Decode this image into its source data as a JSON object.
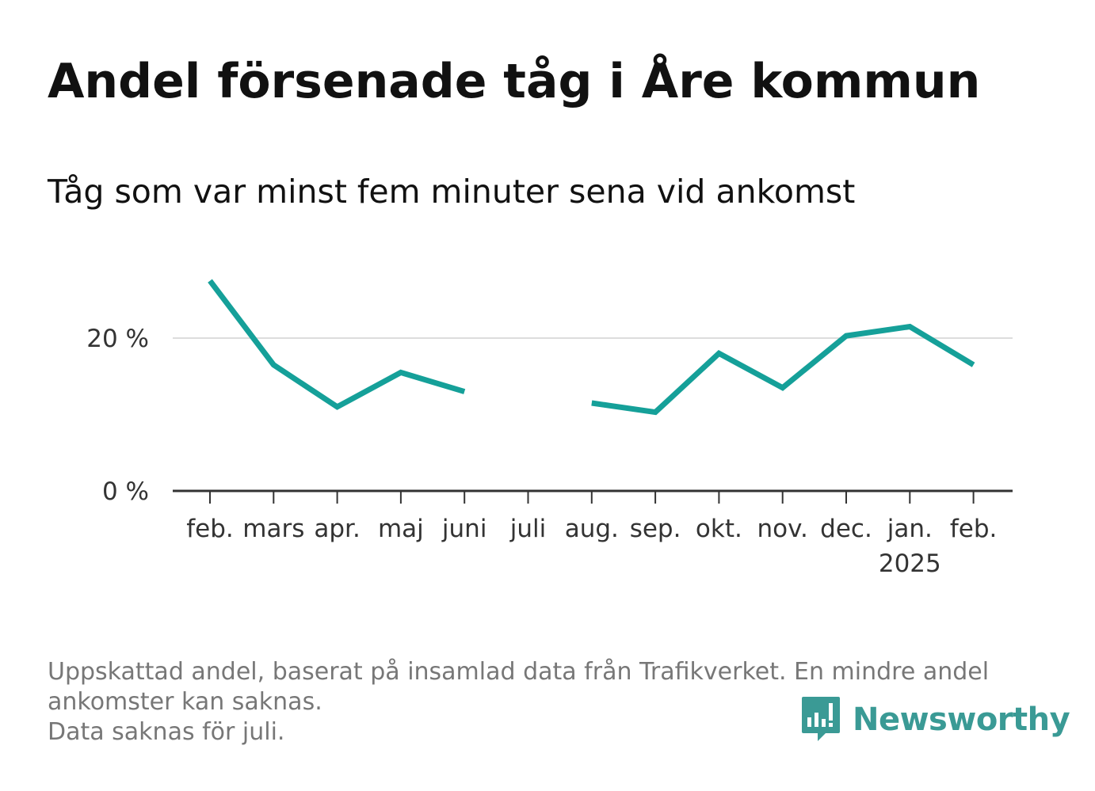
{
  "title": "Andel försenade tåg i Åre kommun",
  "subtitle": "Tåg som var minst fem minuter sena vid ankomst",
  "notes": [
    "Uppskattad andel, baserat på insamlad data från Trafikverket. En mindre andel",
    "ankomster kan saknas.",
    "Data saknas för juli."
  ],
  "brand": {
    "name": "Newsworthy",
    "color": "#3a9a95",
    "icon": "newsworthy-logo-icon"
  },
  "colors": {
    "line": "#15a099",
    "grid": "#dddddd",
    "axis": "#333333"
  },
  "chart_data": {
    "type": "line",
    "title": "Andel försenade tåg i Åre kommun",
    "categories": [
      "feb.",
      "mars",
      "apr.",
      "maj",
      "juni",
      "juli",
      "aug.",
      "sep.",
      "okt.",
      "nov.",
      "dec.",
      "jan.",
      "feb."
    ],
    "category_sublabels": [
      "",
      "",
      "",
      "",
      "",
      "",
      "",
      "",
      "",
      "",
      "",
      "2025",
      ""
    ],
    "series": [
      {
        "values": [
          27.5,
          16.5,
          11,
          15.5,
          13,
          null,
          11.5,
          10.3,
          18,
          13.5,
          20.3,
          21.5,
          16.5
        ]
      }
    ],
    "ylim": [
      0,
      30
    ],
    "yticks": [
      0,
      20
    ],
    "ytick_labels": [
      "0 %",
      "20 %"
    ],
    "grid": true,
    "xlabel": "",
    "ylabel": ""
  }
}
